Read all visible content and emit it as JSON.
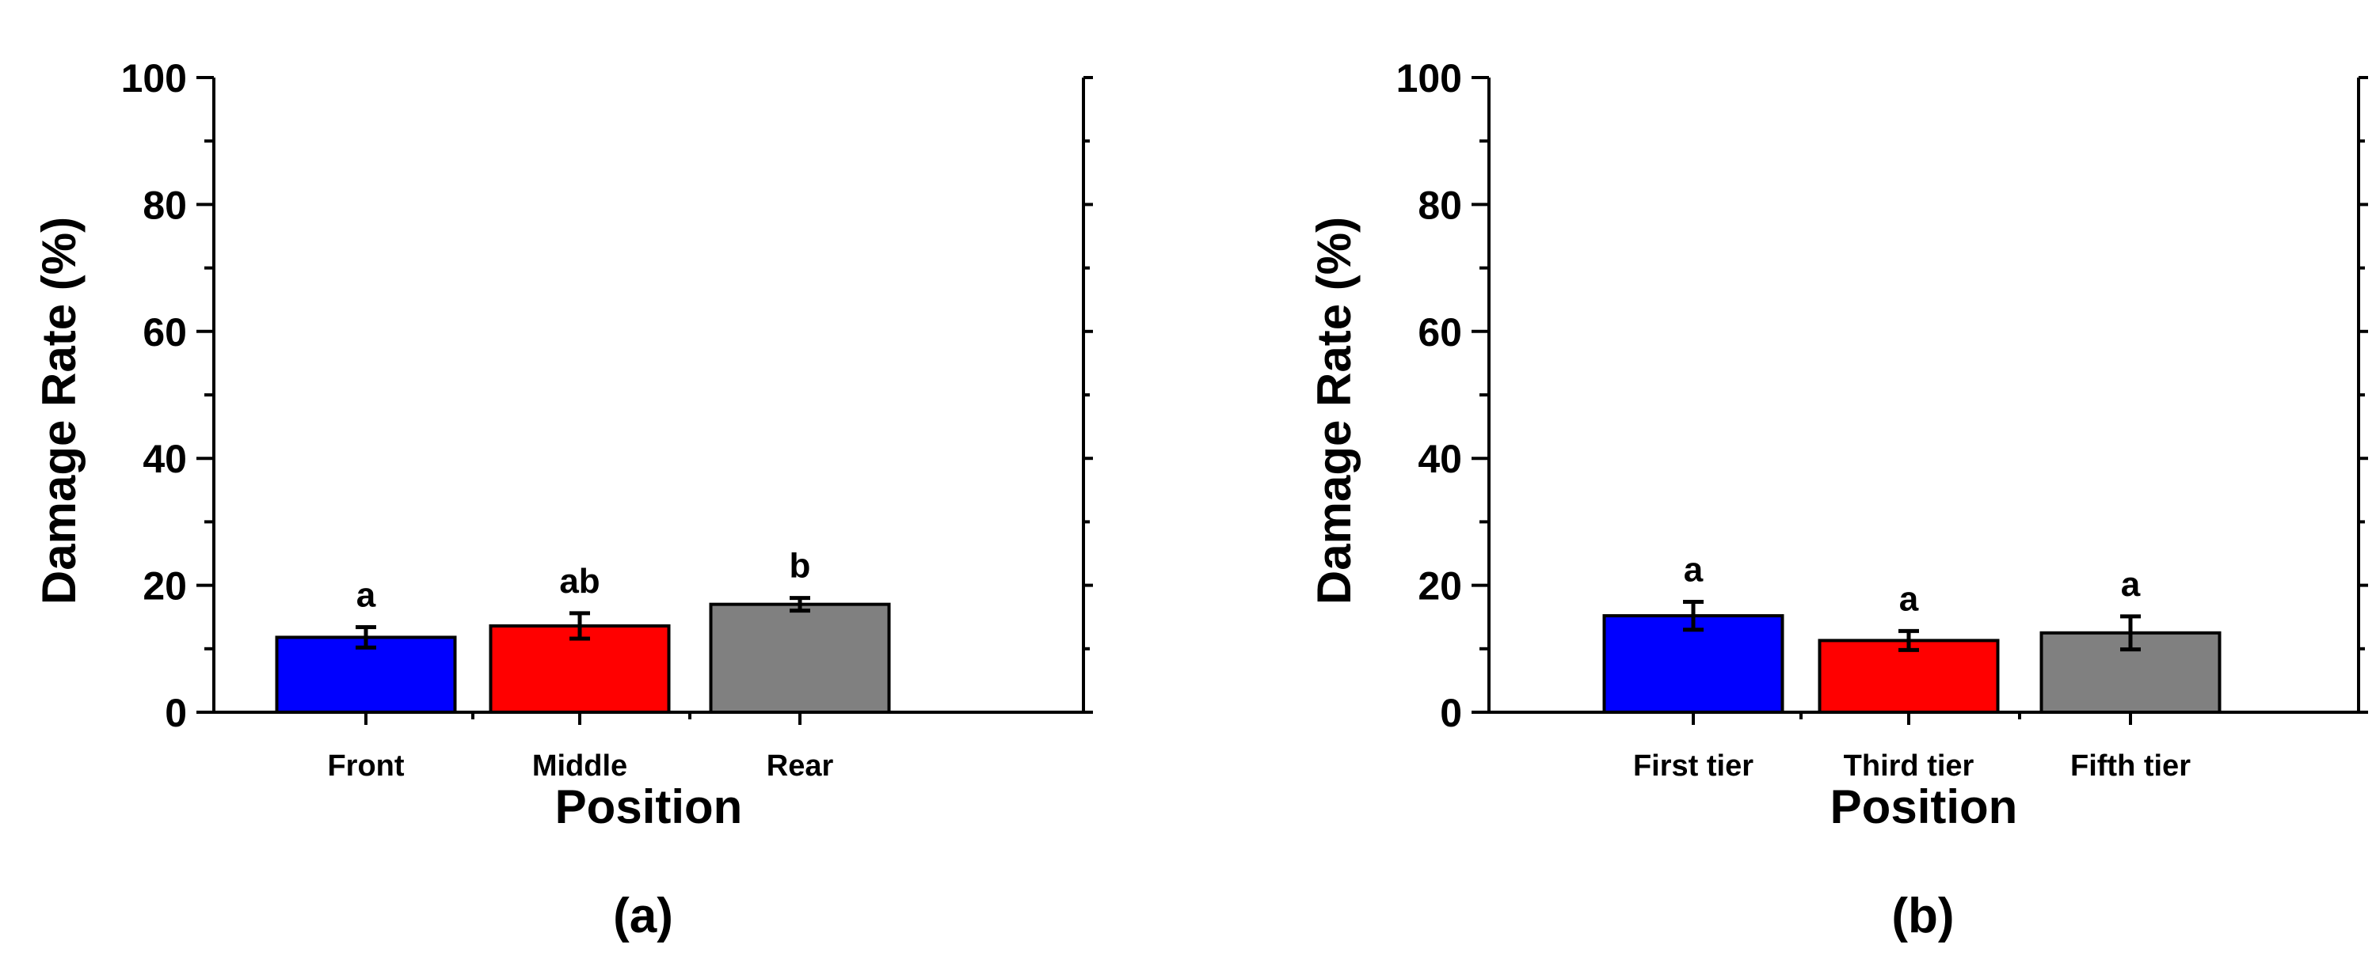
{
  "chart_data": [
    {
      "type": "bar",
      "panel_label": "(a)",
      "xlabel": "Position",
      "ylabel": "Damage Rate (%)",
      "ylim": [
        0,
        100
      ],
      "yticks": [
        "0",
        "20",
        "40",
        "60",
        "80",
        "100"
      ],
      "categories": [
        "Front",
        "Middle",
        "Rear"
      ],
      "values": [
        11.8,
        13.6,
        17.0
      ],
      "errors": [
        1.6,
        2.0,
        1.0
      ],
      "significance": [
        "a",
        "ab",
        "b"
      ],
      "colors": [
        "#0000ff",
        "#ff0000",
        "#808080"
      ],
      "grid": false
    },
    {
      "type": "bar",
      "panel_label": "(b)",
      "xlabel": "Position",
      "ylabel": "Damage Rate (%)",
      "ylim": [
        0,
        100
      ],
      "yticks": [
        "0",
        "20",
        "40",
        "60",
        "80",
        "100"
      ],
      "categories": [
        "First tier",
        "Third tier",
        "Fifth tier"
      ],
      "values": [
        15.2,
        11.3,
        12.5
      ],
      "errors": [
        2.2,
        1.5,
        2.6
      ],
      "significance": [
        "a",
        "a",
        "a"
      ],
      "colors": [
        "#0000ff",
        "#ff0000",
        "#808080"
      ],
      "grid": false
    }
  ]
}
